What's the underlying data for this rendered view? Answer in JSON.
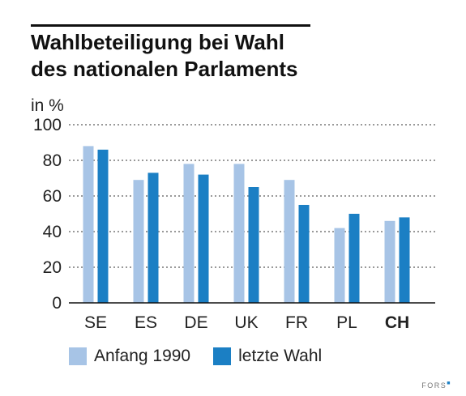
{
  "title_line1": "Wahlbeteiligung bei Wahl",
  "title_line2": "des nationalen Parlaments",
  "source_label": "FORS",
  "colors": {
    "series1": "#a7c4e6",
    "series2": "#1b7fc4",
    "text": "#111111",
    "grid": "#333333"
  },
  "chart_data": {
    "type": "bar",
    "title": "Wahlbeteiligung bei Wahl des nationalen Parlaments",
    "ylabel": "in %",
    "xlabel": "",
    "ylim": [
      0,
      100
    ],
    "yticks": [
      0,
      20,
      40,
      60,
      80,
      100
    ],
    "grid": true,
    "legend_position": "bottom",
    "categories": [
      "SE",
      "ES",
      "DE",
      "UK",
      "FR",
      "PL",
      "CH"
    ],
    "bold_categories": [
      "CH"
    ],
    "series": [
      {
        "name": "Anfang 1990",
        "color": "#a7c4e6",
        "values": [
          88,
          69,
          78,
          78,
          69,
          42,
          46
        ]
      },
      {
        "name": "letzte Wahl",
        "color": "#1b7fc4",
        "values": [
          86,
          73,
          72,
          65,
          55,
          50,
          48
        ]
      }
    ]
  }
}
